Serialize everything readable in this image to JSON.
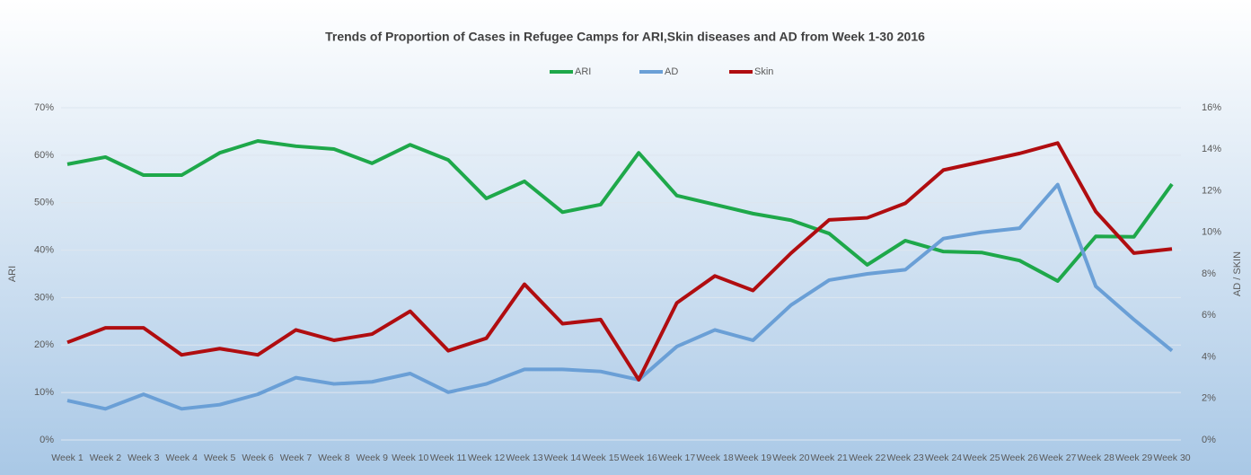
{
  "chart_data": {
    "type": "line",
    "title": "Trends of Proportion of Cases in Refugee Camps for ARI,Skin diseases and AD from Week 1-30 2016",
    "y_label": "ARI",
    "y2_label": "AD / SKIN",
    "categories": [
      "Week 1",
      "Week 2",
      "Week 3",
      "Week 4",
      "Week 5",
      "Week 6",
      "Week 7",
      "Week 8",
      "Week 9",
      "Week 10",
      "Week 11",
      "Week 12",
      "Week 13",
      "Week 14",
      "Week 15",
      "Week 16",
      "Week 17",
      "Week 18",
      "Week 19",
      "Week 20",
      "Week 21",
      "Week 22",
      "Week 23",
      "Week 24",
      "Week 25",
      "Week 26",
      "Week 27",
      "Week 28",
      "Week 29",
      "Week 30"
    ],
    "series": [
      {
        "name": "ARI",
        "color": "#1ea84a",
        "axis": "y",
        "values": [
          58.1,
          59.6,
          55.8,
          55.8,
          60.5,
          63,
          61.9,
          61.3,
          58.3,
          62.2,
          59,
          50.9,
          54.5,
          48,
          49.6,
          60.5,
          51.5,
          49.6,
          47.7,
          46.3,
          43.5,
          36.9,
          42,
          39.7,
          39.5,
          37.8,
          33.5,
          42.9,
          42.8,
          53.9
        ]
      },
      {
        "name": "AD",
        "color": "#6a9fd6",
        "axis": "y2",
        "values": [
          1.9,
          1.5,
          2.2,
          1.5,
          1.7,
          2.2,
          3.0,
          2.7,
          2.8,
          3.2,
          2.3,
          2.7,
          3.4,
          3.4,
          3.3,
          2.9,
          4.5,
          5.3,
          4.8,
          6.5,
          7.7,
          8.0,
          8.2,
          9.7,
          10.0,
          10.2,
          12.3,
          7.4,
          5.8,
          4.3
        ]
      },
      {
        "name": "Skin",
        "color": "#b00d10",
        "axis": "y2",
        "values": [
          4.7,
          5.4,
          5.4,
          4.1,
          4.4,
          4.1,
          5.3,
          4.8,
          5.1,
          6.2,
          4.3,
          4.9,
          7.5,
          5.6,
          5.8,
          2.9,
          6.6,
          7.9,
          7.2,
          9.0,
          10.6,
          10.7,
          11.4,
          13.0,
          13.4,
          13.8,
          14.3,
          11.0,
          9.0,
          9.2
        ]
      }
    ],
    "ylim": [
      0,
      70
    ],
    "yticks": [
      {
        "value": 0,
        "label": "0%"
      },
      {
        "value": 10,
        "label": "10%"
      },
      {
        "value": 20,
        "label": "20%"
      },
      {
        "value": 30,
        "label": "30%"
      },
      {
        "value": 40,
        "label": "40%"
      },
      {
        "value": 50,
        "label": "50%"
      },
      {
        "value": 60,
        "label": "60%"
      },
      {
        "value": 70,
        "label": "70%"
      }
    ],
    "y2lim": [
      0,
      16
    ],
    "y2ticks": [
      {
        "value": 0,
        "label": "0%"
      },
      {
        "value": 2,
        "label": "2%"
      },
      {
        "value": 4,
        "label": "4%"
      },
      {
        "value": 6,
        "label": "6%"
      },
      {
        "value": 8,
        "label": "8%"
      },
      {
        "value": 10,
        "label": "10%"
      },
      {
        "value": 12,
        "label": "12%"
      },
      {
        "value": 14,
        "label": "14%"
      },
      {
        "value": 16,
        "label": "16%"
      }
    ],
    "grid": true,
    "legend": "top"
  }
}
